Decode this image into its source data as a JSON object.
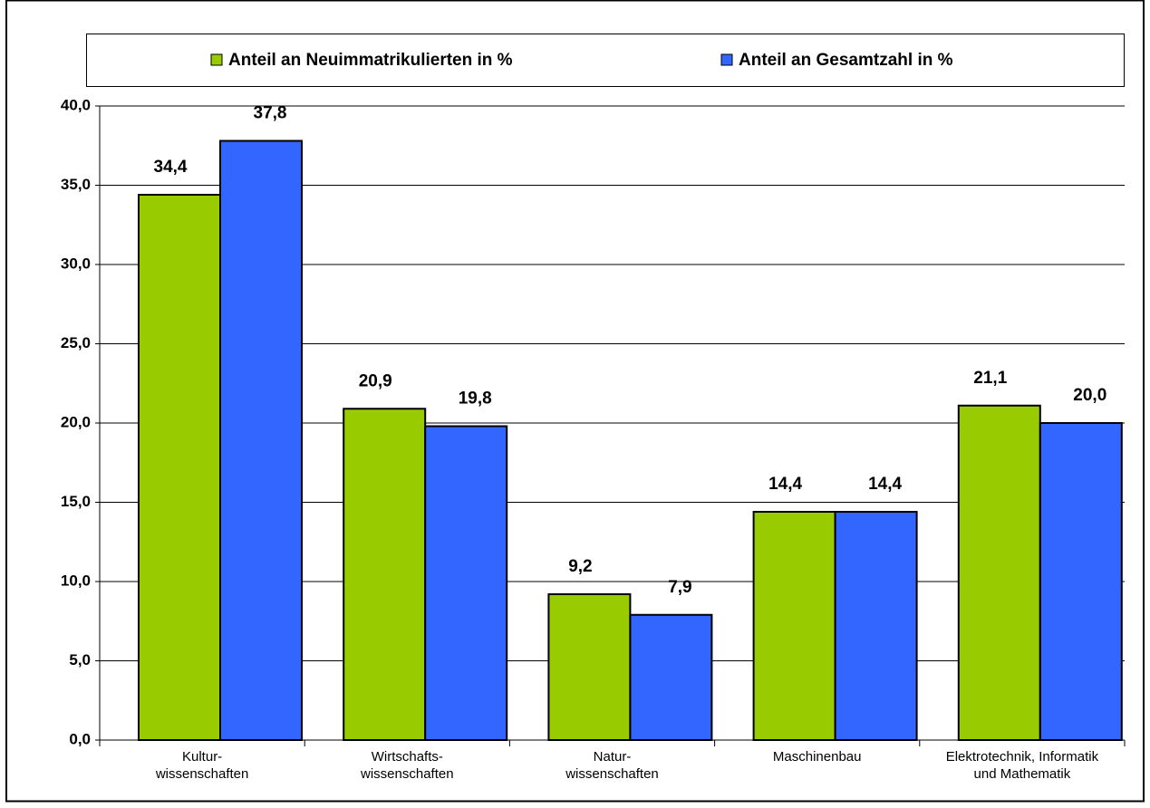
{
  "chart_data": {
    "type": "bar",
    "categories": [
      [
        "Kultur-",
        "wissenschaften"
      ],
      [
        "Wirtschafts-",
        "wissenschaften"
      ],
      [
        "Natur-",
        "wissenschaften"
      ],
      [
        "Maschinenbau"
      ],
      [
        "Elektrotechnik, Informatik",
        "und Mathematik"
      ]
    ],
    "series": [
      {
        "name": "Anteil an Neuimmatrikulierten in %",
        "color": "#99cc00",
        "values": [
          34.4,
          20.9,
          9.2,
          14.4,
          21.1
        ],
        "value_labels": [
          "34,4",
          "20,9",
          "9,2",
          "14,4",
          "21,1"
        ]
      },
      {
        "name": "Anteil an Gesamtzahl in %",
        "color": "#3366ff",
        "values": [
          37.8,
          19.8,
          7.9,
          14.4,
          20.0
        ],
        "value_labels": [
          "37,8",
          "19,8",
          "7,9",
          "14,4",
          "20,0"
        ]
      }
    ],
    "ylim": [
      0,
      40
    ],
    "yticks": [
      {
        "value": 0,
        "label": "0,0"
      },
      {
        "value": 5,
        "label": "5,0"
      },
      {
        "value": 10,
        "label": "10,0"
      },
      {
        "value": 15,
        "label": "15,0"
      },
      {
        "value": 20,
        "label": "20,0"
      },
      {
        "value": 25,
        "label": "25,0"
      },
      {
        "value": 30,
        "label": "30,0"
      },
      {
        "value": 35,
        "label": "35,0"
      },
      {
        "value": 40,
        "label": "40,0"
      }
    ],
    "grid": true,
    "legend": "top"
  }
}
